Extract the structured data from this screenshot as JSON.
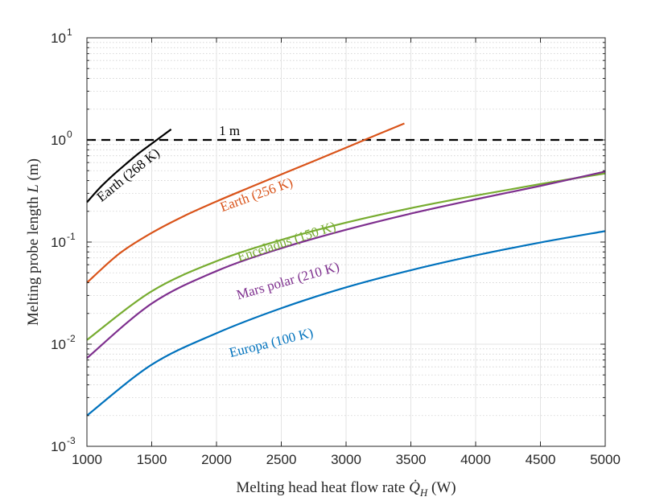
{
  "chart_data": {
    "type": "line",
    "xlabel": "Melting head heat flow rate",
    "xlabel_symbol": "Q̇",
    "xlabel_sub": "H",
    "xlabel_unit": "(W)",
    "ylabel": "Melting probe length",
    "ylabel_symbol": "L",
    "ylabel_unit": "(m)",
    "xlim": [
      1000,
      5000
    ],
    "ylim": [
      0.001,
      10
    ],
    "yscale": "log",
    "grid": true,
    "x_ticks": [
      1000,
      1500,
      2000,
      2500,
      3000,
      3500,
      4000,
      4500,
      5000
    ],
    "x_tick_labels": [
      "1000",
      "1500",
      "2000",
      "2500",
      "3000",
      "3500",
      "4000",
      "4500",
      "5000"
    ],
    "y_ticks": [
      {
        "value": 0.001,
        "base": "10",
        "exp": "-3"
      },
      {
        "value": 0.01,
        "base": "10",
        "exp": "-2"
      },
      {
        "value": 0.1,
        "base": "10",
        "exp": "-1"
      },
      {
        "value": 1,
        "base": "10",
        "exp": "0"
      },
      {
        "value": 10,
        "base": "10",
        "exp": "1"
      }
    ],
    "reference_line": {
      "y": 1,
      "label": "1 m",
      "style": "dashed",
      "color": "#000000"
    },
    "series": [
      {
        "name": "Earth (268 K)",
        "color": "#000000",
        "x": [
          1000,
          1100,
          1200,
          1300,
          1400,
          1500,
          1600,
          1650
        ],
        "y": [
          0.245,
          0.34,
          0.45,
          0.58,
          0.74,
          0.92,
          1.14,
          1.27
        ]
      },
      {
        "name": "Earth (256 K)",
        "color": "#d95319",
        "x": [
          1000,
          1250,
          1500,
          1750,
          2000,
          2250,
          2500,
          2750,
          3000,
          3250,
          3450
        ],
        "y": [
          0.04,
          0.077,
          0.123,
          0.18,
          0.25,
          0.34,
          0.46,
          0.62,
          0.84,
          1.14,
          1.45
        ]
      },
      {
        "name": "Enceladus (150 K)",
        "color": "#77ac30",
        "x": [
          1000,
          1500,
          2000,
          2500,
          3000,
          3500,
          4000,
          4500,
          5000
        ],
        "y": [
          0.011,
          0.033,
          0.065,
          0.105,
          0.155,
          0.215,
          0.285,
          0.37,
          0.47
        ]
      },
      {
        "name": "Mars polar (210 K)",
        "color": "#7e2f8e",
        "x": [
          1000,
          1500,
          2000,
          2500,
          3000,
          3500,
          4000,
          4500,
          5000
        ],
        "y": [
          0.0073,
          0.025,
          0.052,
          0.087,
          0.132,
          0.19,
          0.262,
          0.355,
          0.49
        ]
      },
      {
        "name": "Europa (100 K)",
        "color": "#0072bd",
        "x": [
          1000,
          1500,
          2000,
          2500,
          3000,
          3500,
          4000,
          4500,
          5000
        ],
        "y": [
          0.002,
          0.0063,
          0.0128,
          0.0225,
          0.036,
          0.053,
          0.074,
          0.099,
          0.128
        ]
      }
    ],
    "annotations": [
      {
        "series": "Earth (268 K)",
        "text": "Earth (268 K)",
        "at_x": 1340,
        "at_y": 0.42,
        "angle": -39
      },
      {
        "series": "Earth (256 K)",
        "text": "Earth (256 K)",
        "at_x": 2320,
        "at_y": 0.265,
        "angle": -20
      },
      {
        "series": "Enceladus (150 K)",
        "text": "Enceladus (150 K)",
        "at_x": 2550,
        "at_y": 0.092,
        "angle": -18
      },
      {
        "series": "Mars polar (210 K)",
        "text": "Mars polar (210 K)",
        "at_x": 2560,
        "at_y": 0.038,
        "angle": -16
      },
      {
        "series": "Europa (100 K)",
        "text": "Europa (100 K)",
        "at_x": 2430,
        "at_y": 0.0094,
        "angle": -14
      }
    ]
  }
}
